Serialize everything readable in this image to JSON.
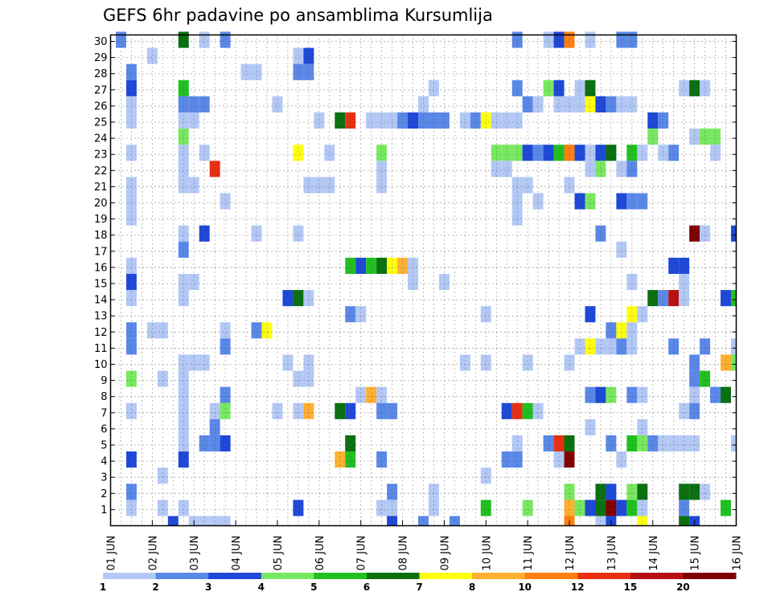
{
  "chart_data": {
    "type": "heatmap",
    "title": "GEFS 6hr padavine po ansamblima Kursumlija",
    "xlabel": "",
    "ylabel": "",
    "x_ticks": [
      "01 JUN",
      "02 JUN",
      "03 JUN",
      "04 JUN",
      "05 JUN",
      "06 JUN",
      "07 JUN",
      "08 JUN",
      "09 JUN",
      "10 JUN",
      "11 JUN",
      "12 JUN",
      "13 JUN",
      "14 JUN",
      "15 JUN",
      "16 JUN"
    ],
    "y_ticks": [
      "1",
      "2",
      "3",
      "4",
      "5",
      "6",
      "7",
      "8",
      "9",
      "10",
      "11",
      "12",
      "13",
      "14",
      "15",
      "16",
      "17",
      "18",
      "19",
      "20",
      "21",
      "22",
      "23",
      "24",
      "25",
      "26",
      "27",
      "28",
      "29",
      "30"
    ],
    "x_unit": "6h step from 01 JUN 00Z",
    "xlim": [
      0,
      60
    ],
    "ylim": [
      0,
      30
    ],
    "grid": true,
    "colorbar": {
      "labels": [
        "1",
        "2",
        "3",
        "4",
        "5",
        "6",
        "7",
        "8",
        "10",
        "12",
        "15",
        "20"
      ],
      "colors": [
        "#b3c8f5",
        "#5a88e8",
        "#1e48d8",
        "#78e860",
        "#20c020",
        "#0a7010",
        "#ffff10",
        "#ffb030",
        "#ff8010",
        "#e83010",
        "#b81010",
        "#800000"
      ]
    },
    "cells": [
      [
        1,
        30,
        1
      ],
      [
        7,
        30,
        5
      ],
      [
        9,
        30,
        0
      ],
      [
        11,
        30,
        1
      ],
      [
        39,
        30,
        1
      ],
      [
        42,
        30,
        0
      ],
      [
        43,
        30,
        2
      ],
      [
        44,
        30,
        8
      ],
      [
        46,
        30,
        0
      ],
      [
        49,
        30,
        1
      ],
      [
        50,
        30,
        1
      ],
      [
        4,
        29,
        0
      ],
      [
        18,
        29,
        0
      ],
      [
        19,
        29,
        2
      ],
      [
        2,
        28,
        1
      ],
      [
        13,
        28,
        0
      ],
      [
        14,
        28,
        0
      ],
      [
        18,
        28,
        1
      ],
      [
        19,
        28,
        1
      ],
      [
        2,
        27,
        2
      ],
      [
        7,
        27,
        4
      ],
      [
        31,
        27,
        0
      ],
      [
        39,
        27,
        1
      ],
      [
        42,
        27,
        3
      ],
      [
        43,
        27,
        2
      ],
      [
        45,
        27,
        0
      ],
      [
        46,
        27,
        5
      ],
      [
        55,
        27,
        0
      ],
      [
        56,
        27,
        5
      ],
      [
        57,
        27,
        0
      ],
      [
        2,
        26,
        0
      ],
      [
        7,
        26,
        1
      ],
      [
        8,
        26,
        1
      ],
      [
        9,
        26,
        1
      ],
      [
        16,
        26,
        0
      ],
      [
        30,
        26,
        0
      ],
      [
        40,
        26,
        1
      ],
      [
        41,
        26,
        0
      ],
      [
        43,
        26,
        0
      ],
      [
        44,
        26,
        0
      ],
      [
        45,
        26,
        0
      ],
      [
        46,
        26,
        6
      ],
      [
        47,
        26,
        2
      ],
      [
        48,
        26,
        1
      ],
      [
        49,
        26,
        0
      ],
      [
        50,
        26,
        0
      ],
      [
        2,
        25,
        0
      ],
      [
        7,
        25,
        0
      ],
      [
        8,
        25,
        0
      ],
      [
        20,
        25,
        0
      ],
      [
        22,
        25,
        5
      ],
      [
        23,
        25,
        9
      ],
      [
        25,
        25,
        0
      ],
      [
        26,
        25,
        0
      ],
      [
        27,
        25,
        0
      ],
      [
        28,
        25,
        1
      ],
      [
        29,
        25,
        2
      ],
      [
        30,
        25,
        1
      ],
      [
        31,
        25,
        1
      ],
      [
        32,
        25,
        1
      ],
      [
        34,
        25,
        0
      ],
      [
        35,
        25,
        1
      ],
      [
        36,
        25,
        6
      ],
      [
        37,
        25,
        0
      ],
      [
        38,
        25,
        0
      ],
      [
        39,
        25,
        0
      ],
      [
        52,
        25,
        2
      ],
      [
        53,
        25,
        1
      ],
      [
        7,
        24,
        3
      ],
      [
        52,
        24,
        3
      ],
      [
        56,
        24,
        0
      ],
      [
        57,
        24,
        3
      ],
      [
        58,
        24,
        3
      ],
      [
        2,
        23,
        0
      ],
      [
        7,
        23,
        0
      ],
      [
        9,
        23,
        0
      ],
      [
        18,
        23,
        6
      ],
      [
        21,
        23,
        0
      ],
      [
        26,
        23,
        3
      ],
      [
        37,
        23,
        3
      ],
      [
        38,
        23,
        3
      ],
      [
        39,
        23,
        3
      ],
      [
        40,
        23,
        2
      ],
      [
        41,
        23,
        1
      ],
      [
        42,
        23,
        2
      ],
      [
        43,
        23,
        4
      ],
      [
        44,
        23,
        8
      ],
      [
        45,
        23,
        2
      ],
      [
        46,
        23,
        0
      ],
      [
        47,
        23,
        2
      ],
      [
        48,
        23,
        5
      ],
      [
        50,
        23,
        4
      ],
      [
        51,
        23,
        0
      ],
      [
        53,
        23,
        0
      ],
      [
        54,
        23,
        1
      ],
      [
        58,
        23,
        0
      ],
      [
        7,
        22,
        0
      ],
      [
        10,
        22,
        9
      ],
      [
        26,
        22,
        0
      ],
      [
        37,
        22,
        0
      ],
      [
        38,
        22,
        0
      ],
      [
        46,
        22,
        0
      ],
      [
        47,
        22,
        3
      ],
      [
        49,
        22,
        0
      ],
      [
        50,
        22,
        1
      ],
      [
        2,
        21,
        0
      ],
      [
        7,
        21,
        0
      ],
      [
        8,
        21,
        0
      ],
      [
        19,
        21,
        0
      ],
      [
        20,
        21,
        0
      ],
      [
        21,
        21,
        0
      ],
      [
        26,
        21,
        0
      ],
      [
        39,
        21,
        0
      ],
      [
        40,
        21,
        0
      ],
      [
        44,
        21,
        0
      ],
      [
        2,
        20,
        0
      ],
      [
        11,
        20,
        0
      ],
      [
        39,
        20,
        0
      ],
      [
        41,
        20,
        0
      ],
      [
        45,
        20,
        2
      ],
      [
        46,
        20,
        3
      ],
      [
        49,
        20,
        2
      ],
      [
        50,
        20,
        1
      ],
      [
        51,
        20,
        1
      ],
      [
        2,
        19,
        0
      ],
      [
        39,
        19,
        0
      ],
      [
        7,
        18,
        0
      ],
      [
        9,
        18,
        2
      ],
      [
        14,
        18,
        0
      ],
      [
        18,
        18,
        0
      ],
      [
        47,
        18,
        1
      ],
      [
        56,
        18,
        11
      ],
      [
        57,
        18,
        0
      ],
      [
        60,
        18,
        2
      ],
      [
        7,
        17,
        1
      ],
      [
        49,
        17,
        0
      ],
      [
        2,
        16,
        0
      ],
      [
        23,
        16,
        4
      ],
      [
        24,
        16,
        2
      ],
      [
        25,
        16,
        4
      ],
      [
        26,
        16,
        5
      ],
      [
        27,
        16,
        6
      ],
      [
        28,
        16,
        7
      ],
      [
        29,
        16,
        0
      ],
      [
        54,
        16,
        2
      ],
      [
        55,
        16,
        2
      ],
      [
        2,
        15,
        2
      ],
      [
        7,
        15,
        0
      ],
      [
        8,
        15,
        0
      ],
      [
        29,
        15,
        0
      ],
      [
        32,
        15,
        0
      ],
      [
        50,
        15,
        0
      ],
      [
        55,
        15,
        0
      ],
      [
        2,
        14,
        0
      ],
      [
        7,
        14,
        0
      ],
      [
        17,
        14,
        2
      ],
      [
        18,
        14,
        5
      ],
      [
        19,
        14,
        0
      ],
      [
        52,
        14,
        5
      ],
      [
        53,
        14,
        1
      ],
      [
        54,
        14,
        10
      ],
      [
        55,
        14,
        0
      ],
      [
        59,
        14,
        2
      ],
      [
        60,
        14,
        4
      ],
      [
        23,
        13,
        1
      ],
      [
        24,
        13,
        0
      ],
      [
        36,
        13,
        0
      ],
      [
        46,
        13,
        2
      ],
      [
        50,
        13,
        6
      ],
      [
        51,
        13,
        0
      ],
      [
        2,
        12,
        1
      ],
      [
        4,
        12,
        0
      ],
      [
        5,
        12,
        0
      ],
      [
        11,
        12,
        0
      ],
      [
        14,
        12,
        1
      ],
      [
        15,
        12,
        6
      ],
      [
        48,
        12,
        1
      ],
      [
        49,
        12,
        6
      ],
      [
        50,
        12,
        0
      ],
      [
        2,
        11,
        1
      ],
      [
        11,
        11,
        1
      ],
      [
        45,
        11,
        0
      ],
      [
        46,
        11,
        6
      ],
      [
        47,
        11,
        0
      ],
      [
        48,
        11,
        0
      ],
      [
        49,
        11,
        1
      ],
      [
        50,
        11,
        0
      ],
      [
        54,
        11,
        1
      ],
      [
        57,
        11,
        1
      ],
      [
        60,
        11,
        0
      ],
      [
        7,
        10,
        0
      ],
      [
        8,
        10,
        0
      ],
      [
        9,
        10,
        0
      ],
      [
        17,
        10,
        0
      ],
      [
        19,
        10,
        0
      ],
      [
        34,
        10,
        0
      ],
      [
        36,
        10,
        0
      ],
      [
        40,
        10,
        0
      ],
      [
        44,
        10,
        0
      ],
      [
        56,
        10,
        1
      ],
      [
        59,
        10,
        7
      ],
      [
        60,
        10,
        3
      ],
      [
        2,
        9,
        3
      ],
      [
        5,
        9,
        0
      ],
      [
        7,
        9,
        0
      ],
      [
        18,
        9,
        0
      ],
      [
        19,
        9,
        0
      ],
      [
        56,
        9,
        1
      ],
      [
        57,
        9,
        4
      ],
      [
        7,
        8,
        0
      ],
      [
        11,
        8,
        1
      ],
      [
        24,
        8,
        0
      ],
      [
        25,
        8,
        7
      ],
      [
        26,
        8,
        0
      ],
      [
        46,
        8,
        1
      ],
      [
        47,
        8,
        2
      ],
      [
        48,
        8,
        3
      ],
      [
        50,
        8,
        1
      ],
      [
        51,
        8,
        0
      ],
      [
        56,
        8,
        0
      ],
      [
        58,
        8,
        1
      ],
      [
        59,
        8,
        5
      ],
      [
        2,
        7,
        0
      ],
      [
        7,
        7,
        0
      ],
      [
        10,
        7,
        0
      ],
      [
        11,
        7,
        3
      ],
      [
        16,
        7,
        0
      ],
      [
        18,
        7,
        0
      ],
      [
        19,
        7,
        7
      ],
      [
        22,
        7,
        5
      ],
      [
        23,
        7,
        2
      ],
      [
        26,
        7,
        1
      ],
      [
        27,
        7,
        1
      ],
      [
        38,
        7,
        2
      ],
      [
        39,
        7,
        9
      ],
      [
        40,
        7,
        4
      ],
      [
        41,
        7,
        0
      ],
      [
        55,
        7,
        0
      ],
      [
        56,
        7,
        1
      ],
      [
        7,
        6,
        0
      ],
      [
        10,
        6,
        1
      ],
      [
        46,
        6,
        0
      ],
      [
        51,
        6,
        0
      ],
      [
        7,
        5,
        0
      ],
      [
        9,
        5,
        1
      ],
      [
        10,
        5,
        1
      ],
      [
        11,
        5,
        2
      ],
      [
        23,
        5,
        5
      ],
      [
        39,
        5,
        0
      ],
      [
        42,
        5,
        1
      ],
      [
        43,
        5,
        9
      ],
      [
        44,
        5,
        5
      ],
      [
        48,
        5,
        1
      ],
      [
        50,
        5,
        4
      ],
      [
        51,
        5,
        3
      ],
      [
        52,
        5,
        1
      ],
      [
        53,
        5,
        0
      ],
      [
        54,
        5,
        0
      ],
      [
        55,
        5,
        0
      ],
      [
        56,
        5,
        0
      ],
      [
        60,
        5,
        0
      ],
      [
        2,
        4,
        2
      ],
      [
        7,
        4,
        2
      ],
      [
        22,
        4,
        7
      ],
      [
        23,
        4,
        4
      ],
      [
        26,
        4,
        1
      ],
      [
        38,
        4,
        1
      ],
      [
        39,
        4,
        1
      ],
      [
        43,
        4,
        0
      ],
      [
        44,
        4,
        11
      ],
      [
        49,
        4,
        0
      ],
      [
        5,
        3,
        0
      ],
      [
        36,
        3,
        0
      ],
      [
        2,
        2,
        1
      ],
      [
        27,
        2,
        1
      ],
      [
        31,
        2,
        0
      ],
      [
        44,
        2,
        3
      ],
      [
        47,
        2,
        5
      ],
      [
        48,
        2,
        2
      ],
      [
        50,
        2,
        3
      ],
      [
        51,
        2,
        5
      ],
      [
        55,
        2,
        5
      ],
      [
        56,
        2,
        5
      ],
      [
        57,
        2,
        0
      ],
      [
        2,
        1,
        0
      ],
      [
        5,
        1,
        0
      ],
      [
        7,
        1,
        0
      ],
      [
        18,
        1,
        2
      ],
      [
        26,
        1,
        0
      ],
      [
        27,
        1,
        0
      ],
      [
        31,
        1,
        0
      ],
      [
        36,
        1,
        4
      ],
      [
        40,
        1,
        3
      ],
      [
        44,
        1,
        7
      ],
      [
        45,
        1,
        3
      ],
      [
        46,
        1,
        2
      ],
      [
        47,
        1,
        5
      ],
      [
        48,
        1,
        11
      ],
      [
        49,
        1,
        2
      ],
      [
        50,
        1,
        4
      ],
      [
        51,
        1,
        0
      ],
      [
        55,
        1,
        1
      ],
      [
        59,
        1,
        4
      ],
      [
        6,
        0,
        2
      ],
      [
        8,
        0,
        0
      ],
      [
        9,
        0,
        0
      ],
      [
        10,
        0,
        0
      ],
      [
        11,
        0,
        0
      ],
      [
        27,
        0,
        2
      ],
      [
        30,
        0,
        1
      ],
      [
        33,
        0,
        1
      ],
      [
        44,
        0,
        8
      ],
      [
        47,
        0,
        0
      ],
      [
        48,
        0,
        2
      ],
      [
        51,
        0,
        6
      ],
      [
        55,
        0,
        5
      ],
      [
        56,
        0,
        2
      ]
    ]
  }
}
